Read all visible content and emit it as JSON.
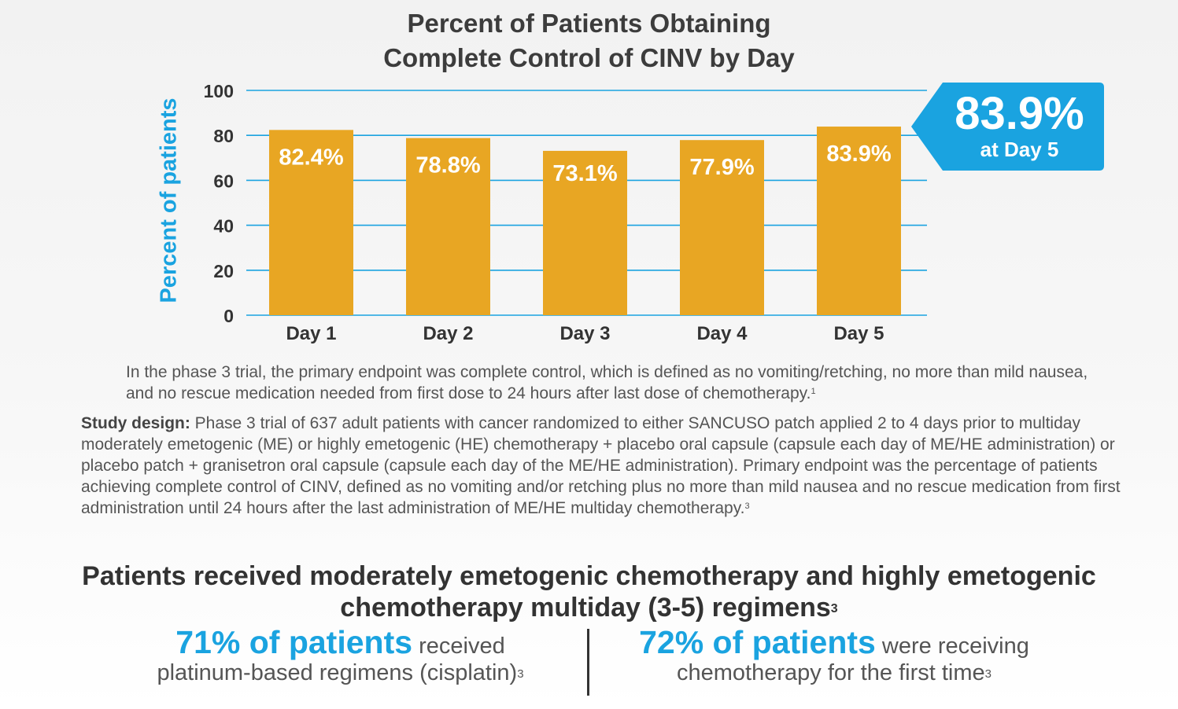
{
  "chart_data": {
    "type": "bar",
    "title_lines": [
      "Percent of Patients Obtaining",
      "Complete Control of CINV by Day"
    ],
    "xlabel": "",
    "ylabel": "Percent of patients",
    "ylim": [
      0,
      100
    ],
    "yticks": [
      0,
      20,
      40,
      60,
      80,
      100
    ],
    "categories": [
      "Day 1",
      "Day 2",
      "Day 3",
      "Day 4",
      "Day 5"
    ],
    "values": [
      82.4,
      78.8,
      73.1,
      77.9,
      83.9
    ],
    "data_labels": [
      "82.4%",
      "78.8%",
      "73.1%",
      "77.9%",
      "83.9%"
    ],
    "grid": true,
    "bar_color": "#e8a623",
    "grid_color": "#1aa3e0"
  },
  "callout": {
    "value": "83.9%",
    "caption": "at Day 5",
    "color": "#1aa3e0"
  },
  "endpoint_text": "In the phase 3 trial, the primary endpoint was complete control, which is defined as no vomiting/retching, no more than mild nausea, and no rescue medication needed from first dose to 24 hours after last dose of chemotherapy.",
  "endpoint_ref": "1",
  "study_design": {
    "label": "Study design:",
    "text": " Phase 3 trial of 637 adult patients with cancer randomized to either SANCUSO patch applied 2 to 4 days prior to multiday moderately emetogenic (ME) or highly emetogenic (HE) chemotherapy + placebo oral capsule (capsule each day of ME/HE administration) or placebo patch + granisetron oral capsule (capsule each day of the ME/HE administration). Primary endpoint was the percentage of patients achieving complete control of CINV, defined as no vomiting and/or retching plus no more than mild nausea and no rescue medication from first administration until 24 hours after the last administration of ME/HE multiday chemotherapy.",
    "ref": "3"
  },
  "headline": {
    "text": "Patients received moderately emetogenic chemotherapy and highly emetogenic chemotherapy multiday (3-5) regimens",
    "ref": "3"
  },
  "stats": [
    {
      "highlight": "71% of patients",
      "rest1": " received",
      "line2": "platinum-based regimens (cisplatin)",
      "ref": "3"
    },
    {
      "highlight": "72% of patients",
      "rest1": " were receiving",
      "line2": "chemotherapy for the first time",
      "ref": "3"
    }
  ]
}
